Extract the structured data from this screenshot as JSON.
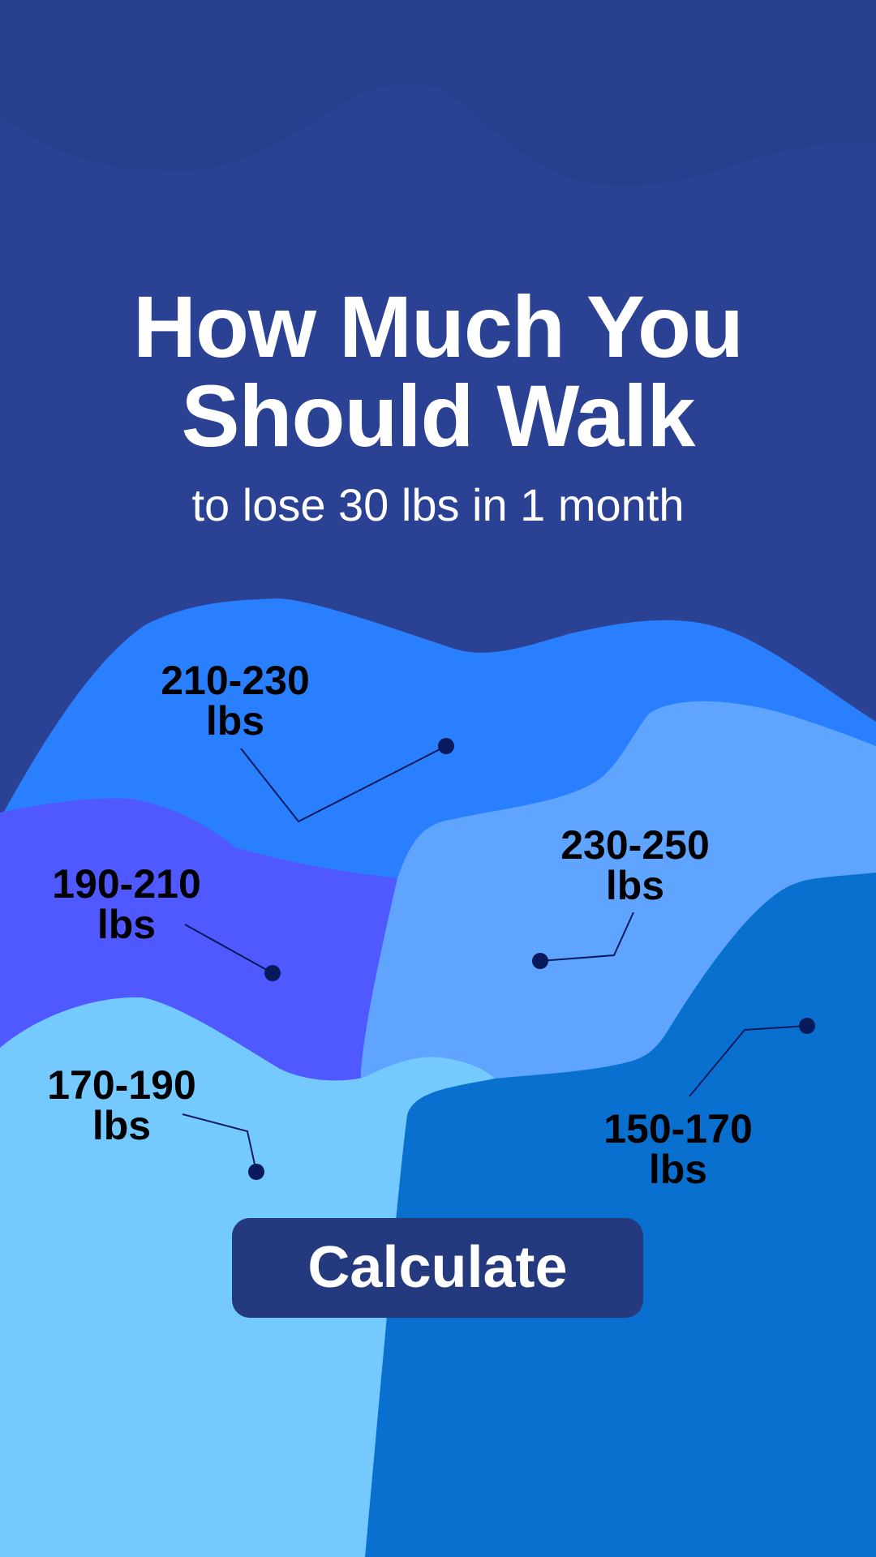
{
  "header": {
    "title_line1": "How Much You",
    "title_line2": "Should Walk",
    "subtitle": "to lose 30 lbs in 1 month"
  },
  "ranges": [
    {
      "id": "210-230",
      "range": "210-230",
      "unit": "lbs",
      "color": "#2a7fff"
    },
    {
      "id": "190-210",
      "range": "190-210",
      "unit": "lbs",
      "color": "#4f59ff"
    },
    {
      "id": "230-250",
      "range": "230-250",
      "unit": "lbs",
      "color": "#5fa5ff"
    },
    {
      "id": "170-190",
      "range": "170-190",
      "unit": "lbs",
      "color": "#74caff"
    },
    {
      "id": "150-170",
      "range": "150-170",
      "unit": "lbs",
      "color": "#0a70d0"
    }
  ],
  "button": {
    "label": "Calculate",
    "color": "#25397f"
  },
  "colors": {
    "background": "#2b4194",
    "top_band": "#283f8e",
    "marker": "#081a5c"
  }
}
